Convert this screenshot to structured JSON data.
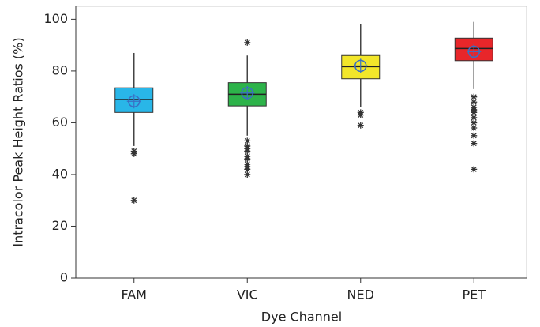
{
  "chart_data": {
    "type": "box",
    "x_label": "Dye Channel",
    "y_label": "Intracolor Peak Height Ratios (%)",
    "categories": [
      "FAM",
      "VIC",
      "NED",
      "PET"
    ],
    "boxes": [
      {
        "color": "#29b6e8",
        "whisker_low": 51,
        "q1": 64,
        "median": 69,
        "q3": 73.5,
        "whisker_high": 87,
        "mean": 68.3,
        "outliers": [
          49,
          48,
          30
        ]
      },
      {
        "color": "#2db34a",
        "whisker_low": 55,
        "q1": 66.5,
        "median": 71,
        "q3": 75.5,
        "whisker_high": 86,
        "mean": 71.5,
        "outliers": [
          91,
          53,
          51,
          50,
          49,
          47,
          46,
          44,
          43,
          42,
          40
        ]
      },
      {
        "color": "#f2e62a",
        "whisker_low": 66,
        "q1": 77,
        "median": 81.7,
        "q3": 86,
        "whisker_high": 98,
        "mean": 82,
        "outliers": [
          64,
          63,
          59
        ]
      },
      {
        "color": "#e8262a",
        "whisker_low": 73,
        "q1": 84,
        "median": 88.7,
        "q3": 92.7,
        "whisker_high": 99,
        "mean": 87.5,
        "outliers": [
          70,
          68,
          66,
          65,
          64,
          62,
          60,
          58,
          55,
          52,
          42
        ]
      }
    ],
    "mean_color": "#3a6fc4",
    "ylim": [
      0,
      105
    ],
    "yticks": [
      0,
      20,
      40,
      60,
      80,
      100
    ]
  }
}
